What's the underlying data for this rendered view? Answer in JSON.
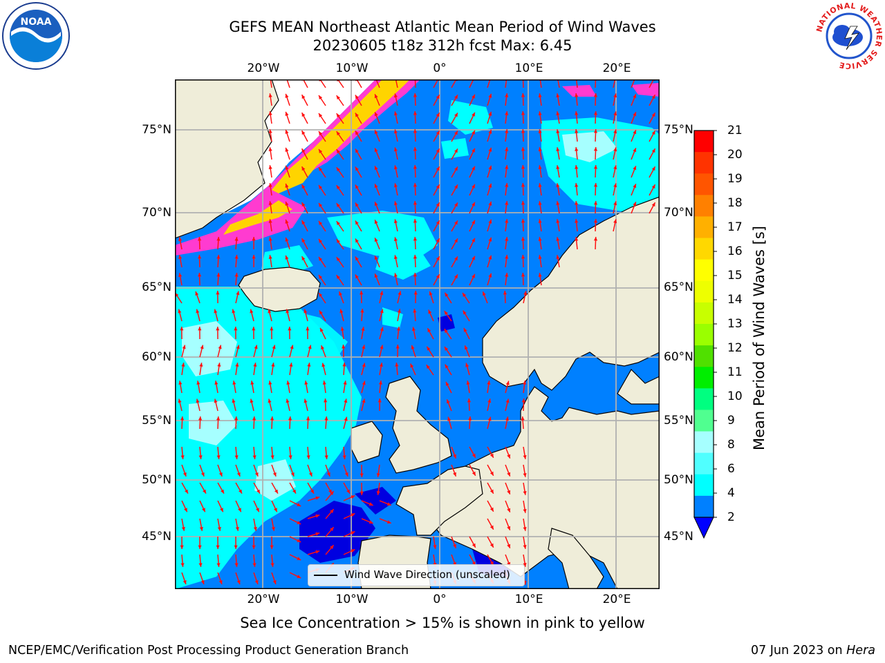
{
  "title": {
    "line1": "GEFS MEAN Northeast Atlantic Mean Period of Wind Waves",
    "line2": "20230605 t18z 312h fcst   Max: 6.45"
  },
  "map": {
    "lon_labels": [
      "20°W",
      "10°W",
      "0°",
      "10°E",
      "20°E"
    ],
    "lat_labels": [
      "75°N",
      "70°N",
      "65°N",
      "60°N",
      "55°N",
      "50°N",
      "45°N"
    ],
    "legend_label": "Wind Wave Direction (unscaled)",
    "colors": {
      "land": "#efedd9",
      "ocean_low": "#0080ff",
      "ocean_mid": "#00ffff",
      "ocean_light": "#a6ffff",
      "deep": "#0000e0",
      "ice": "#ff3bd0",
      "arrow": "#ff1010",
      "grid": "#b0b0b0"
    }
  },
  "colorbar": {
    "title": "Mean Period of Wind Waves [s]",
    "ticks": [
      "21",
      "20",
      "19",
      "18",
      "17",
      "16",
      "15",
      "14",
      "13",
      "12",
      "11",
      "10",
      "9",
      "8",
      "6",
      "4",
      "2"
    ],
    "colors": [
      "#ff0000",
      "#ff3300",
      "#ff5500",
      "#ff8000",
      "#ffb000",
      "#ffd800",
      "#ffff00",
      "#eeff00",
      "#c8ff00",
      "#9aff00",
      "#50e000",
      "#00ee00",
      "#00ff80",
      "#50ff90",
      "#a6ffff",
      "#50ffff",
      "#00ffff",
      "#0080ff"
    ],
    "extend_color": "#0000ff"
  },
  "note": "Sea Ice Concentration > 15% is shown in pink to yellow",
  "footer": {
    "left": "NCEP/EMC/Verification Post Processing Product Generation Branch",
    "right_date": "07 Jun 2023 on ",
    "right_host": "Hera"
  },
  "logos": {
    "noaa_text": "NOAA",
    "nws_text": "NATIONAL WEATHER SERVICE"
  }
}
